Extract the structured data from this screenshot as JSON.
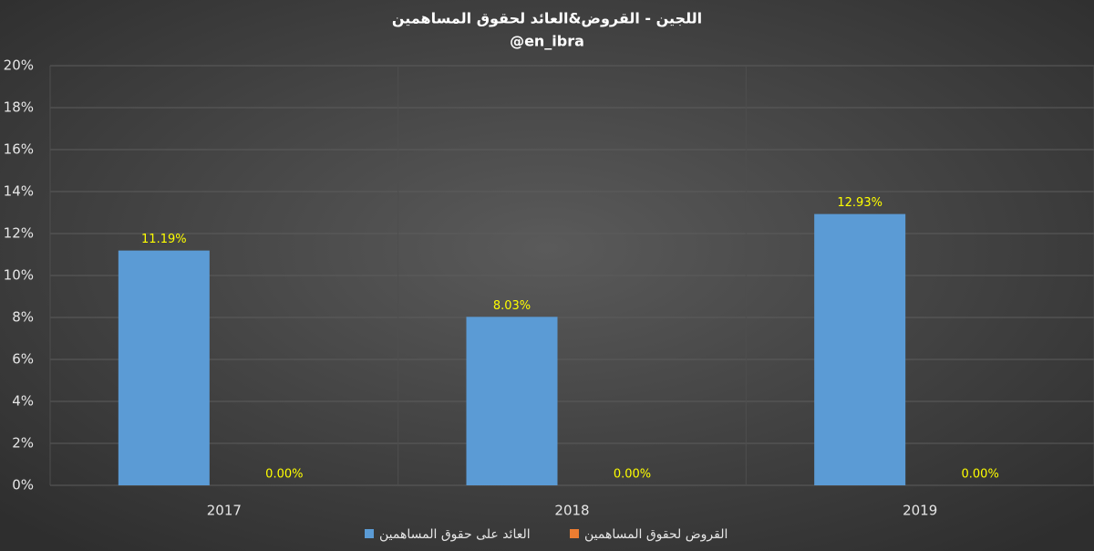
{
  "chart_data": {
    "type": "bar",
    "title": "اللجين - القروض&العائد لحقوق المساهمين",
    "subtitle": "@en_ibra",
    "categories": [
      "2017",
      "2018",
      "2019"
    ],
    "series": [
      {
        "name": "العائد على حقوق المساهمين",
        "color": "#5b9bd5",
        "values": [
          11.19,
          8.03,
          12.93
        ],
        "value_labels": [
          "11.19%",
          "8.03%",
          "12.93%"
        ]
      },
      {
        "name": "القروض لحقوق المساهمين",
        "color": "#ed7d31",
        "values": [
          0,
          0,
          0
        ],
        "value_labels": [
          "0.00%",
          "0.00%",
          "0.00%"
        ]
      }
    ],
    "ylim": [
      0,
      20
    ],
    "yticks": [
      {
        "value": 0,
        "label": "0%"
      },
      {
        "value": 2,
        "label": "2%"
      },
      {
        "value": 4,
        "label": "4%"
      },
      {
        "value": 6,
        "label": "6%"
      },
      {
        "value": 8,
        "label": "8%"
      },
      {
        "value": 10,
        "label": "10%"
      },
      {
        "value": 12,
        "label": "12%"
      },
      {
        "value": 14,
        "label": "14%"
      },
      {
        "value": 16,
        "label": "16%"
      },
      {
        "value": 18,
        "label": "18%"
      },
      {
        "value": 20,
        "label": "20%"
      }
    ],
    "grid": true,
    "label_color": "#ffff00"
  }
}
